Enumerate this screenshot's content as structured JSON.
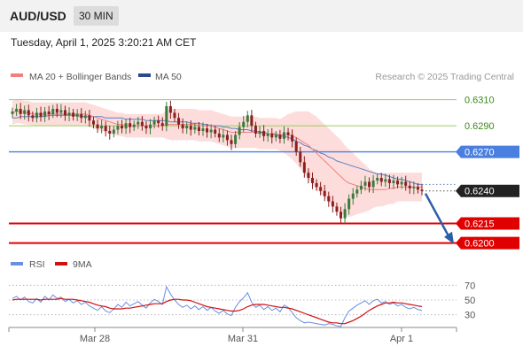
{
  "header": {
    "pair": "AUD/USD",
    "timeframe": "30 MIN",
    "timestamp": "Tuesday, April 1, 2025 3:20:21 AM CET"
  },
  "legend": {
    "ma20": "MA 20 + Bollinger Bands",
    "ma50": "MA 50",
    "credit": "Research © 2025 Trading Central"
  },
  "rsi_legend": {
    "rsi": "RSI",
    "ma": "9MA"
  },
  "colors": {
    "candle_up": "#3c7a3c",
    "candle_down": "#8a1f1f",
    "band": "#fcd9d7",
    "ma20": "#f08080",
    "ma50": "#5b7fc7",
    "resistance": "#9acd60",
    "support": "#e00000",
    "pivot": "#4a7fe0",
    "last": "#222222",
    "arrow": "#2c5ea8",
    "rsi": "#6a8ee0",
    "rsi_ma": "#d01010"
  },
  "chart_data": [
    {
      "type": "candlestick",
      "symbol": "AUD/USD",
      "x_ticks": [
        "Mar 28",
        "Mar 31",
        "Apr 1"
      ],
      "ylim": [
        0.6195,
        0.6322
      ],
      "levels": [
        {
          "value": 0.631,
          "label": "0.6310",
          "kind": "resistance"
        },
        {
          "value": 0.629,
          "label": "0.6290",
          "kind": "resistance"
        },
        {
          "value": 0.627,
          "label": "0.6270",
          "kind": "pivot"
        },
        {
          "value": 0.624,
          "label": "0.6240",
          "kind": "last"
        },
        {
          "value": 0.6215,
          "label": "0.6215",
          "kind": "support"
        },
        {
          "value": 0.62,
          "label": "0.6200",
          "kind": "support"
        }
      ],
      "close": [
        0.6301,
        0.6303,
        0.6299,
        0.6302,
        0.6298,
        0.6296,
        0.63,
        0.6297,
        0.6301,
        0.6299,
        0.6303,
        0.63,
        0.6302,
        0.6298,
        0.63,
        0.6297,
        0.6299,
        0.6296,
        0.6298,
        0.6294,
        0.6291,
        0.6288,
        0.629,
        0.6286,
        0.6284,
        0.6287,
        0.629,
        0.6288,
        0.6292,
        0.6289,
        0.6291,
        0.6293,
        0.629,
        0.6288,
        0.6291,
        0.6294,
        0.6292,
        0.629,
        0.6305,
        0.63,
        0.6296,
        0.6291,
        0.6288,
        0.629,
        0.6287,
        0.6289,
        0.6286,
        0.6288,
        0.6285,
        0.6287,
        0.6284,
        0.6281,
        0.6283,
        0.6279,
        0.6276,
        0.6283,
        0.6289,
        0.6293,
        0.6298,
        0.629,
        0.6284,
        0.6286,
        0.6282,
        0.6284,
        0.6281,
        0.6283,
        0.628,
        0.6285,
        0.6283,
        0.6278,
        0.627,
        0.6262,
        0.6254,
        0.625,
        0.6246,
        0.6243,
        0.624,
        0.6236,
        0.6232,
        0.6228,
        0.6224,
        0.6219,
        0.6226,
        0.6234,
        0.6238,
        0.6241,
        0.6244,
        0.6247,
        0.6243,
        0.6248,
        0.625,
        0.6247,
        0.6249,
        0.6246,
        0.6248,
        0.6245,
        0.6247,
        0.6244,
        0.6242,
        0.6243,
        0.6241,
        0.624
      ],
      "ma20": [
        0.63,
        0.6301,
        0.6301,
        0.63,
        0.63,
        0.6299,
        0.6299,
        0.6299,
        0.6299,
        0.6299,
        0.6299,
        0.6299,
        0.6299,
        0.6299,
        0.6299,
        0.6299,
        0.6299,
        0.6299,
        0.6299,
        0.6298,
        0.6297,
        0.6296,
        0.6295,
        0.6294,
        0.6293,
        0.6292,
        0.6291,
        0.6291,
        0.629,
        0.629,
        0.629,
        0.629,
        0.629,
        0.629,
        0.629,
        0.629,
        0.629,
        0.629,
        0.6291,
        0.6291,
        0.6291,
        0.6291,
        0.6291,
        0.6291,
        0.6291,
        0.6291,
        0.629,
        0.629,
        0.629,
        0.629,
        0.6289,
        0.6288,
        0.6287,
        0.6286,
        0.6285,
        0.6285,
        0.6285,
        0.6285,
        0.6285,
        0.6285,
        0.6285,
        0.6284,
        0.6284,
        0.6284,
        0.6284,
        0.6284,
        0.6283,
        0.6283,
        0.6283,
        0.6282,
        0.6281,
        0.6279,
        0.6277,
        0.6275,
        0.6272,
        0.6269,
        0.6266,
        0.6263,
        0.626,
        0.6257,
        0.6254,
        0.6251,
        0.6248,
        0.6246,
        0.6245,
        0.6244,
        0.6243,
        0.6242,
        0.6241,
        0.6241,
        0.6241,
        0.6241,
        0.6241,
        0.6242,
        0.6242,
        0.6243,
        0.6243,
        0.6243,
        0.6243,
        0.6243,
        0.6243,
        0.6243
      ],
      "ma50": [
        0.6296,
        0.6296,
        0.6297,
        0.6297,
        0.6297,
        0.6297,
        0.6297,
        0.6297,
        0.6297,
        0.6298,
        0.6298,
        0.6298,
        0.6298,
        0.6298,
        0.6298,
        0.6298,
        0.6298,
        0.6297,
        0.6297,
        0.6297,
        0.6297,
        0.6297,
        0.6297,
        0.6296,
        0.6296,
        0.6296,
        0.6296,
        0.6296,
        0.6295,
        0.6295,
        0.6295,
        0.6295,
        0.6295,
        0.6294,
        0.6294,
        0.6294,
        0.6294,
        0.6294,
        0.6294,
        0.6293,
        0.6293,
        0.6293,
        0.6293,
        0.6293,
        0.6292,
        0.6292,
        0.6292,
        0.6291,
        0.6291,
        0.629,
        0.629,
        0.629,
        0.6289,
        0.6289,
        0.6288,
        0.6288,
        0.6287,
        0.6287,
        0.6287,
        0.6286,
        0.6286,
        0.6285,
        0.6285,
        0.6284,
        0.6284,
        0.6283,
        0.6282,
        0.6282,
        0.6281,
        0.628,
        0.6278,
        0.6277,
        0.6275,
        0.6274,
        0.6272,
        0.6271,
        0.6269,
        0.6268,
        0.6266,
        0.6265,
        0.6263,
        0.6262,
        0.6261,
        0.626,
        0.6259,
        0.6258,
        0.6257,
        0.6256,
        0.6255,
        0.6254,
        0.6253,
        0.6253,
        0.6252,
        0.6251,
        0.625,
        0.6249,
        0.6249,
        0.6248,
        0.6247,
        0.6246,
        0.6245,
        0.6245
      ],
      "bb_width": [
        0.0009,
        0.0009,
        0.0009,
        0.0009,
        0.0009,
        0.0009,
        0.0009,
        0.0009,
        0.0009,
        0.0009,
        0.0009,
        0.0009,
        0.0009,
        0.0009,
        0.0009,
        0.0009,
        0.0009,
        0.0009,
        0.0009,
        0.0009,
        0.0009,
        0.0009,
        0.0009,
        0.0009,
        0.0009,
        0.0009,
        0.0009,
        0.0009,
        0.0009,
        0.0009,
        0.0009,
        0.0009,
        0.0009,
        0.0009,
        0.0009,
        0.0009,
        0.0009,
        0.0009,
        0.0011,
        0.0012,
        0.0012,
        0.0012,
        0.0012,
        0.0012,
        0.0012,
        0.0012,
        0.0012,
        0.0012,
        0.0012,
        0.0012,
        0.0012,
        0.0012,
        0.0012,
        0.0012,
        0.0012,
        0.0012,
        0.0012,
        0.0012,
        0.0012,
        0.0012,
        0.0012,
        0.0012,
        0.0012,
        0.0012,
        0.0012,
        0.0012,
        0.0012,
        0.0014,
        0.0016,
        0.0018,
        0.002,
        0.0022,
        0.0024,
        0.0026,
        0.0027,
        0.0028,
        0.0028,
        0.0028,
        0.0028,
        0.0028,
        0.0028,
        0.0028,
        0.0027,
        0.0026,
        0.0024,
        0.0022,
        0.002,
        0.0018,
        0.0016,
        0.0014,
        0.0013,
        0.0013,
        0.0012,
        0.0012,
        0.0012,
        0.0011,
        0.0011,
        0.0011,
        0.0011,
        0.0011,
        0.0011,
        0.0011
      ]
    },
    {
      "type": "line",
      "name": "RSI",
      "y_ticks": [
        70,
        50,
        30
      ],
      "ylim": [
        20,
        80
      ],
      "rsi": [
        52,
        55,
        50,
        54,
        48,
        46,
        52,
        47,
        55,
        50,
        57,
        52,
        54,
        48,
        51,
        46,
        49,
        44,
        47,
        42,
        39,
        36,
        41,
        35,
        33,
        38,
        44,
        40,
        47,
        42,
        45,
        48,
        43,
        39,
        46,
        51,
        48,
        44,
        68,
        58,
        50,
        44,
        40,
        43,
        38,
        42,
        37,
        41,
        36,
        40,
        35,
        32,
        36,
        31,
        29,
        40,
        48,
        53,
        60,
        47,
        40,
        43,
        37,
        41,
        36,
        39,
        34,
        43,
        40,
        33,
        26,
        22,
        19,
        20,
        19,
        18,
        17,
        16,
        18,
        17,
        15,
        14,
        26,
        35,
        39,
        43,
        46,
        49,
        44,
        49,
        51,
        46,
        48,
        44,
        46,
        42,
        44,
        40,
        38,
        40,
        37,
        36
      ],
      "rsi_ma": [
        50,
        51,
        51,
        51,
        51,
        51,
        51,
        50,
        51,
        51,
        51,
        51,
        52,
        51,
        51,
        51,
        50,
        49,
        48,
        47,
        45,
        43,
        42,
        41,
        39,
        38,
        38,
        38,
        39,
        39,
        40,
        41,
        42,
        43,
        44,
        45,
        45,
        45,
        48,
        50,
        51,
        51,
        50,
        50,
        49,
        47,
        45,
        43,
        41,
        40,
        39,
        38,
        37,
        36,
        35,
        35,
        36,
        38,
        41,
        43,
        44,
        44,
        44,
        43,
        42,
        41,
        40,
        40,
        39,
        38,
        36,
        34,
        32,
        30,
        28,
        26,
        24,
        22,
        20,
        19,
        19,
        18,
        18,
        20,
        22,
        25,
        28,
        32,
        36,
        39,
        42,
        44,
        46,
        46,
        47,
        46,
        46,
        45,
        44,
        43,
        42,
        41
      ]
    }
  ]
}
